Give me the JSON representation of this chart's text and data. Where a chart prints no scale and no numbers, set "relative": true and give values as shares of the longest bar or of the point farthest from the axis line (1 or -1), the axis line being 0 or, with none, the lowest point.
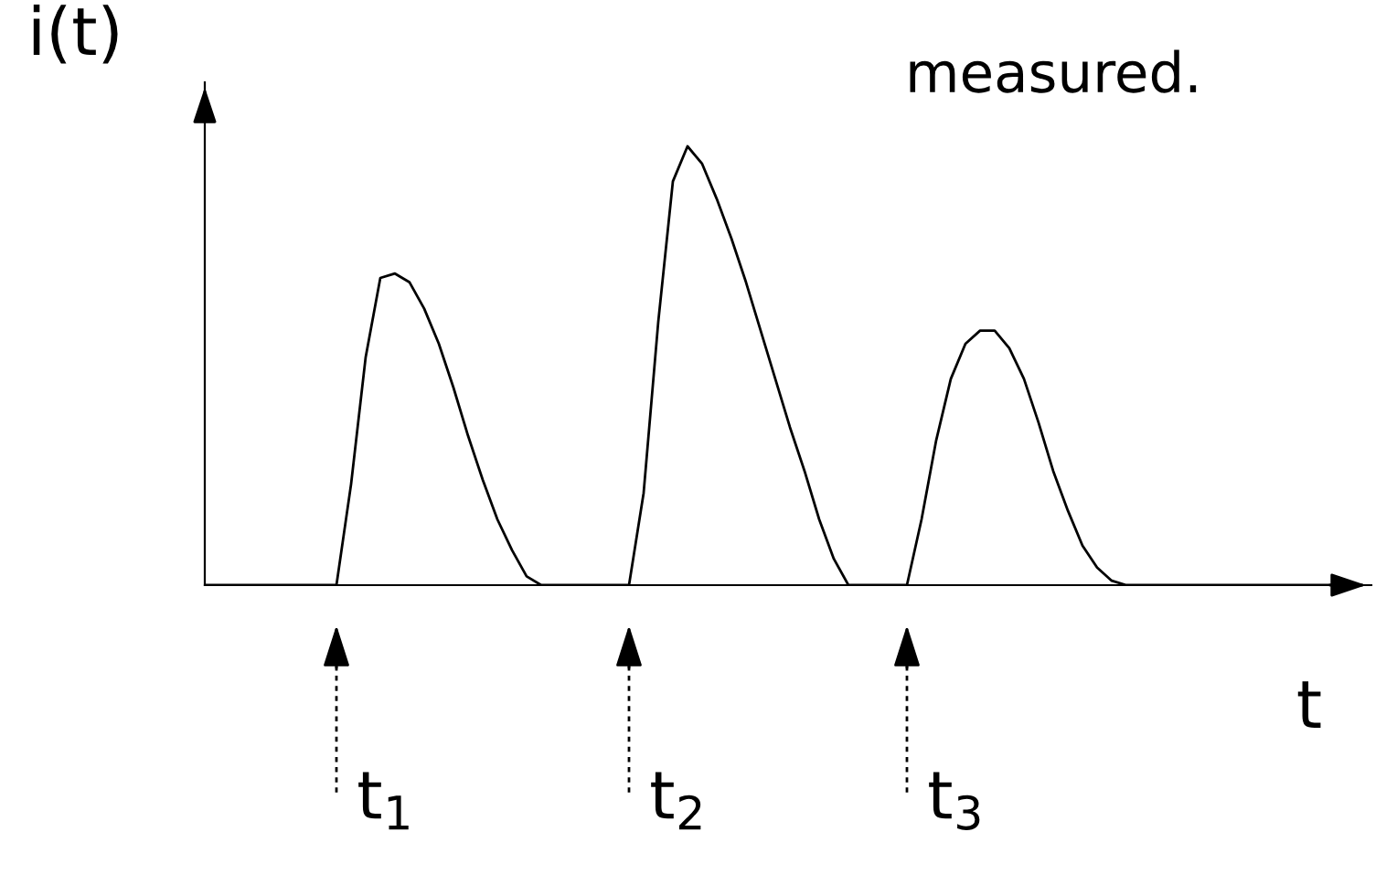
{
  "chart_data": {
    "type": "line",
    "relative": true,
    "color": "#000000",
    "xlabel": "t",
    "ylabel": "i(t)",
    "categories": [
      null,
      null,
      null,
      null,
      null,
      null,
      null,
      null,
      null,
      null,
      null,
      null,
      null,
      null,
      null,
      null,
      null,
      null,
      null,
      null,
      null,
      null,
      null,
      null,
      null,
      null,
      null,
      null,
      null,
      null,
      null,
      null,
      null,
      null,
      null,
      null,
      null,
      null,
      null,
      null,
      null,
      null,
      null,
      null,
      null,
      null,
      null,
      null,
      null,
      null,
      null,
      null,
      null,
      null,
      null,
      null,
      null,
      null,
      null,
      null,
      null,
      null,
      null,
      null,
      null,
      null,
      null,
      null,
      null,
      null,
      null,
      null,
      null,
      null,
      null,
      null,
      null,
      null,
      null,
      null
    ],
    "values": [
      0,
      0,
      0,
      0,
      0,
      0,
      0,
      0,
      0,
      0,
      0.23,
      0.52,
      0.7,
      0.71,
      0.69,
      0.63,
      0.55,
      0.45,
      0.34,
      0.24,
      0.15,
      0.08,
      0.02,
      0,
      0,
      0,
      0,
      0,
      0,
      0,
      0.21,
      0.6,
      0.92,
      1,
      0.96,
      0.88,
      0.79,
      0.69,
      0.58,
      0.47,
      0.36,
      0.26,
      0.15,
      0.06,
      0,
      0,
      0,
      0,
      0,
      0.15,
      0.33,
      0.47,
      0.55,
      0.58,
      0.58,
      0.54,
      0.47,
      0.37,
      0.26,
      0.17,
      0.09,
      0.04,
      0.01,
      0,
      0,
      0,
      0,
      0,
      0,
      0,
      0,
      0,
      0,
      0,
      0,
      0,
      0,
      0,
      0,
      0
    ],
    "annotations": [
      "measured.",
      "t$_{1}$",
      "t$_{2}$",
      "t$_{3}$"
    ],
    "grid": false
  }
}
